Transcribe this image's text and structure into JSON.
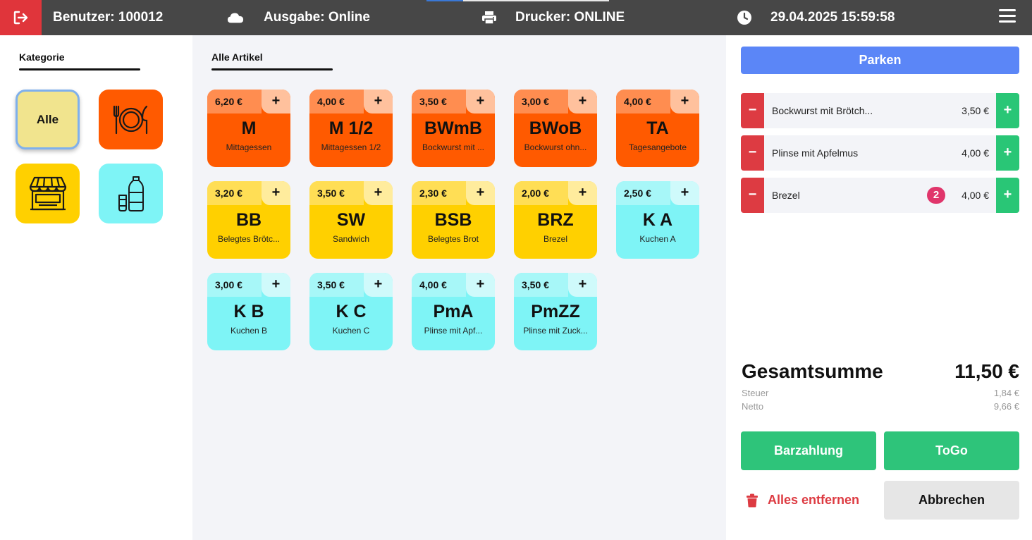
{
  "topbar": {
    "user_label": "Benutzer: 100012",
    "output_label": "Ausgabe: Online",
    "printer_label": "Drucker: ONLINE",
    "datetime": "29.04.2025 15:59:58",
    "icons": [
      "logout-icon",
      "cloud-icon",
      "printer-icon",
      "clock-icon",
      "menu-icon"
    ]
  },
  "categories": {
    "title": "Kategorie",
    "items": [
      {
        "label": "Alle",
        "color": "#f1e48e",
        "selected": true
      },
      {
        "icon": "plate-cutlery-icon",
        "color": "#ff5a00"
      },
      {
        "icon": "shop-icon",
        "color": "#ffd000"
      },
      {
        "icon": "drinks-icon",
        "color": "#7ef4f6"
      }
    ]
  },
  "articles": {
    "title": "Alle Artikel",
    "plus": "+",
    "items": [
      {
        "price": "6,20 €",
        "code": "M",
        "name": "Mittagessen",
        "color": "orange"
      },
      {
        "price": "4,00 €",
        "code": "M 1/2",
        "name": "Mittagessen 1/2",
        "color": "orange"
      },
      {
        "price": "3,50 €",
        "code": "BWmB",
        "name": "Bockwurst mit ...",
        "color": "orange"
      },
      {
        "price": "3,00 €",
        "code": "BWoB",
        "name": "Bockwurst ohn...",
        "color": "orange"
      },
      {
        "price": "4,00 €",
        "code": "TA",
        "name": "Tagesangebote",
        "color": "orange"
      },
      {
        "price": "3,20 €",
        "code": "BB",
        "name": "Belegtes Brötc...",
        "color": "yellow"
      },
      {
        "price": "3,50 €",
        "code": "SW",
        "name": "Sandwich",
        "color": "yellow"
      },
      {
        "price": "2,30 €",
        "code": "BSB",
        "name": "Belegtes Brot",
        "color": "yellow"
      },
      {
        "price": "2,00 €",
        "code": "BRZ",
        "name": "Brezel",
        "color": "yellow"
      },
      {
        "price": "2,50 €",
        "code": "K A",
        "name": "Kuchen A",
        "color": "cyan"
      },
      {
        "price": "3,00 €",
        "code": "K B",
        "name": "Kuchen B",
        "color": "cyan"
      },
      {
        "price": "3,50 €",
        "code": "K C",
        "name": "Kuchen C",
        "color": "cyan"
      },
      {
        "price": "4,00 €",
        "code": "PmA",
        "name": "Plinse mit Apf...",
        "color": "cyan"
      },
      {
        "price": "3,50 €",
        "code": "PmZZ",
        "name": "Plinse mit Zuck...",
        "color": "cyan"
      }
    ]
  },
  "palette": {
    "orange": {
      "base": "#ff5a00",
      "price": "#ff8d50",
      "plus": "#ffc19d"
    },
    "yellow": {
      "base": "#ffd000",
      "price": "#ffde55",
      "plus": "#ffec9d"
    },
    "cyan": {
      "base": "#7ef4f6",
      "price": "#a7f7f8",
      "plus": "#cffafb"
    }
  },
  "cart": {
    "park_label": "Parken",
    "minus": "−",
    "plus": "+",
    "items": [
      {
        "name": "Bockwurst mit Brötch...",
        "price": "3,50 €",
        "qty": ""
      },
      {
        "name": "Plinse mit Apfelmus",
        "price": "4,00 €",
        "qty": ""
      },
      {
        "name": "Brezel",
        "price": "4,00 €",
        "qty": "2"
      }
    ],
    "total_label": "Gesamtsumme",
    "total_value": "11,50 €",
    "tax_label": "Steuer",
    "tax_value": "1,84 €",
    "net_label": "Netto",
    "net_value": "9,66 €",
    "cash_label": "Barzahlung",
    "togo_label": "ToGo",
    "remove_all_label": "Alles entfernen",
    "cancel_label": "Abbrechen"
  }
}
